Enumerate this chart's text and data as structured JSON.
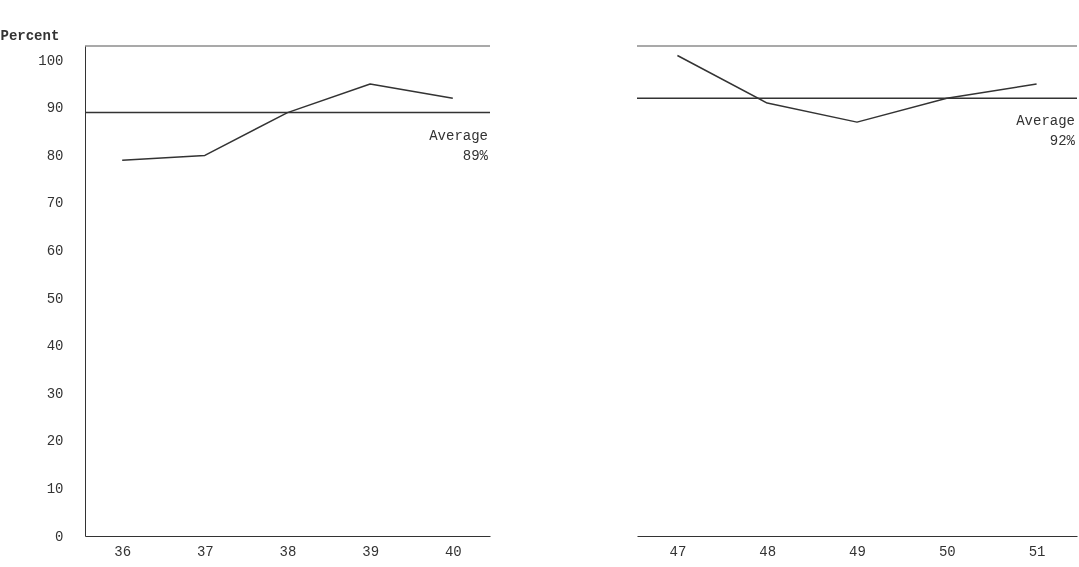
{
  "chart_data": [
    {
      "type": "line",
      "ylabel": "Percent",
      "categories": [
        "36",
        "37",
        "38",
        "39",
        "40"
      ],
      "values": [
        79,
        80,
        89,
        95,
        92
      ],
      "color": "#333333",
      "ylim": [
        0,
        103
      ],
      "yticks": [
        0,
        10,
        20,
        30,
        40,
        50,
        60,
        70,
        80,
        90,
        100
      ],
      "ref_lines": [
        {
          "axis": "y",
          "value": 89,
          "label": "Average 89%",
          "color": "#333333"
        }
      ]
    },
    {
      "type": "line",
      "categories": [
        "47",
        "48",
        "49",
        "50",
        "51"
      ],
      "values": [
        101,
        91,
        87,
        92,
        95
      ],
      "color": "#333333",
      "ylim": [
        0,
        103
      ],
      "yticks": [
        0,
        10,
        20,
        30,
        40,
        50,
        60,
        70,
        80,
        90,
        100
      ],
      "tick_labels": "x",
      "ref_lines": [
        {
          "axis": "y",
          "value": 92,
          "label": "Average 92%",
          "color": "#333333"
        }
      ]
    }
  ]
}
